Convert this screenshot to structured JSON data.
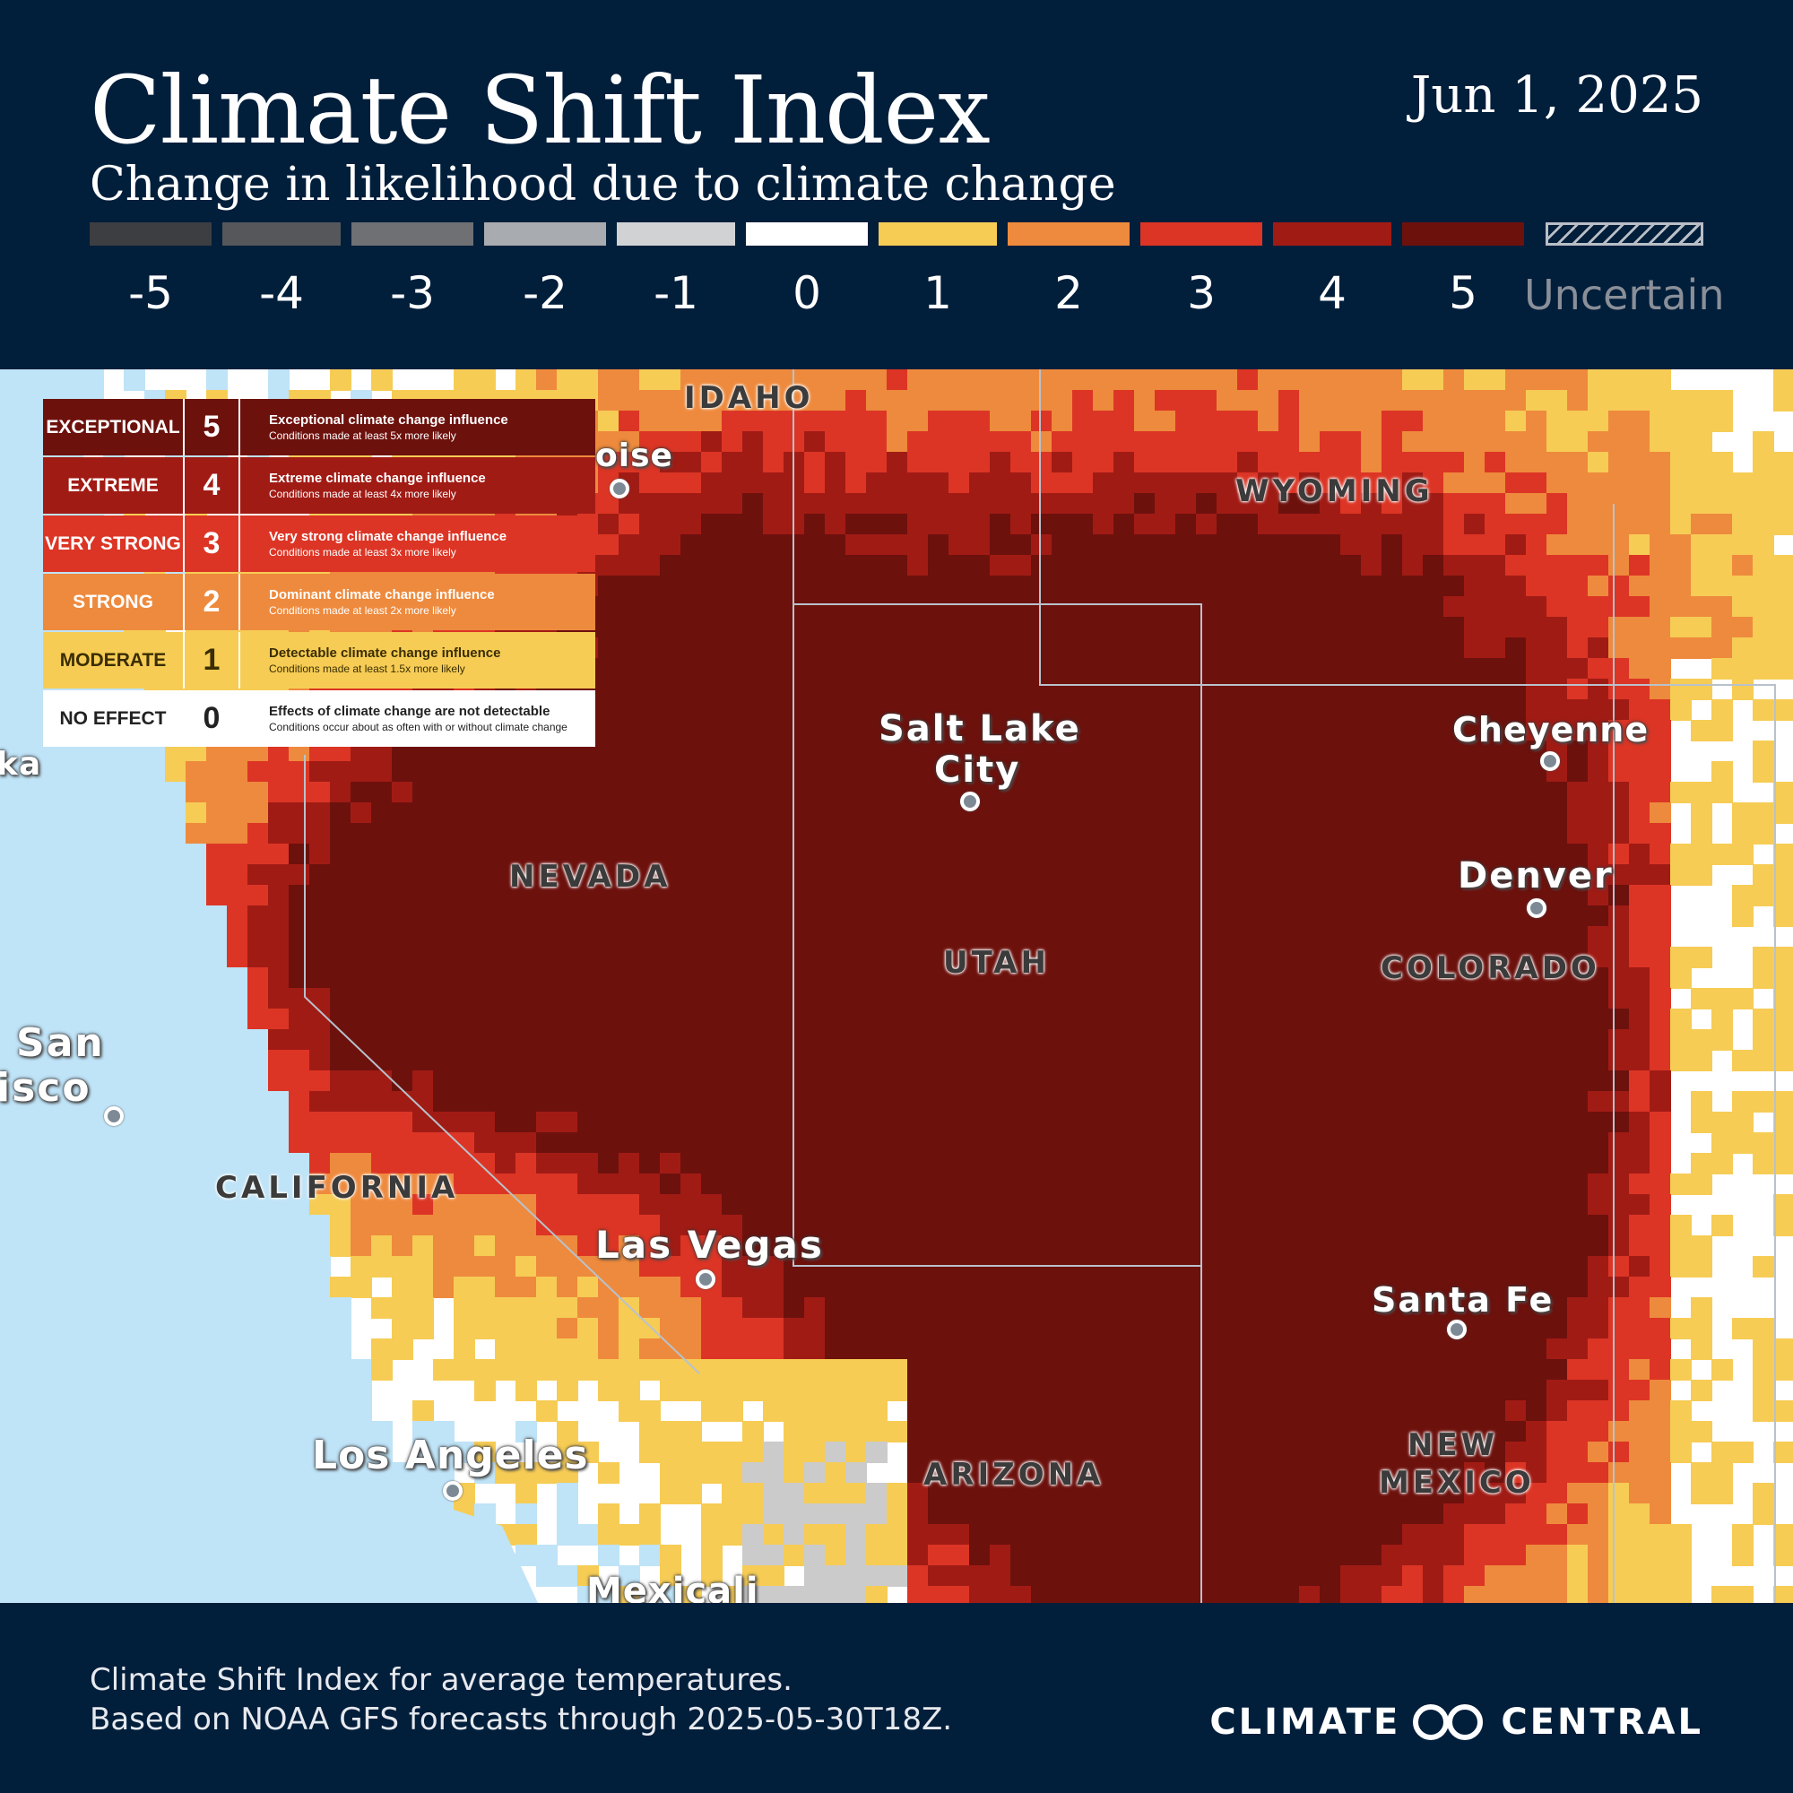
{
  "header": {
    "title": "Climate Shift Index",
    "subtitle": "Change in likelihood due to climate change",
    "date": "Jun 1, 2025"
  },
  "scale": {
    "colors": [
      "#3c3e42",
      "#55575b",
      "#6e7073",
      "#a8abaf",
      "#d1d2d4",
      "#ffffff",
      "#f6cc55",
      "#ee8a3d",
      "#dc3525",
      "#a11b15",
      "#6d110d"
    ],
    "labels": [
      "-5",
      "-4",
      "-3",
      "-2",
      "-1",
      "0",
      "1",
      "2",
      "3",
      "4",
      "5"
    ],
    "uncertain_label": "Uncertain"
  },
  "legend": [
    {
      "category": "EXCEPTIONAL",
      "level": "5",
      "title": "Exceptional climate change influence",
      "detail": "Conditions made at least 5x more likely",
      "color": "#6d110d"
    },
    {
      "category": "EXTREME",
      "level": "4",
      "title": "Extreme climate change influence",
      "detail": "Conditions made at least 4x more likely",
      "color": "#a11b15"
    },
    {
      "category": "VERY STRONG",
      "level": "3",
      "title": "Very strong climate change influence",
      "detail": "Conditions made at least 3x more likely",
      "color": "#dc3525"
    },
    {
      "category": "STRONG",
      "level": "2",
      "title": "Dominant climate change influence",
      "detail": "Conditions made at least  2x more likely",
      "color": "#ee8a3d"
    },
    {
      "category": "MODERATE",
      "level": "1",
      "title": "Detectable climate change influence",
      "detail": "Conditions made at least 1.5x more likely",
      "color": "#f6cc55"
    },
    {
      "category": "NO EFFECT",
      "level": "0",
      "title": "Effects of climate change are not detectable",
      "detail": "Conditions occur about as often with or without climate change",
      "color": "#ffffff"
    }
  ],
  "map": {
    "states": [
      "IDAHO",
      "WYOMING",
      "NEVADA",
      "UTAH",
      "COLORADO",
      "CALIFORNIA",
      "ARIZONA",
      "NEW",
      "MEXICO"
    ],
    "cities": [
      "Salt Lake",
      "City",
      "Cheyenne",
      "Denver",
      "Las Vegas",
      "Santa Fe",
      "Los Angeles",
      "San",
      "isco",
      "oise",
      "ka",
      "Mexicali"
    ]
  },
  "footer": {
    "line1": "Climate Shift Index for average temperatures.",
    "line2": "Based on NOAA GFS forecasts through 2025-05-30T18Z.",
    "brand_left": "CLIMATE",
    "brand_right": "CENTRAL"
  }
}
